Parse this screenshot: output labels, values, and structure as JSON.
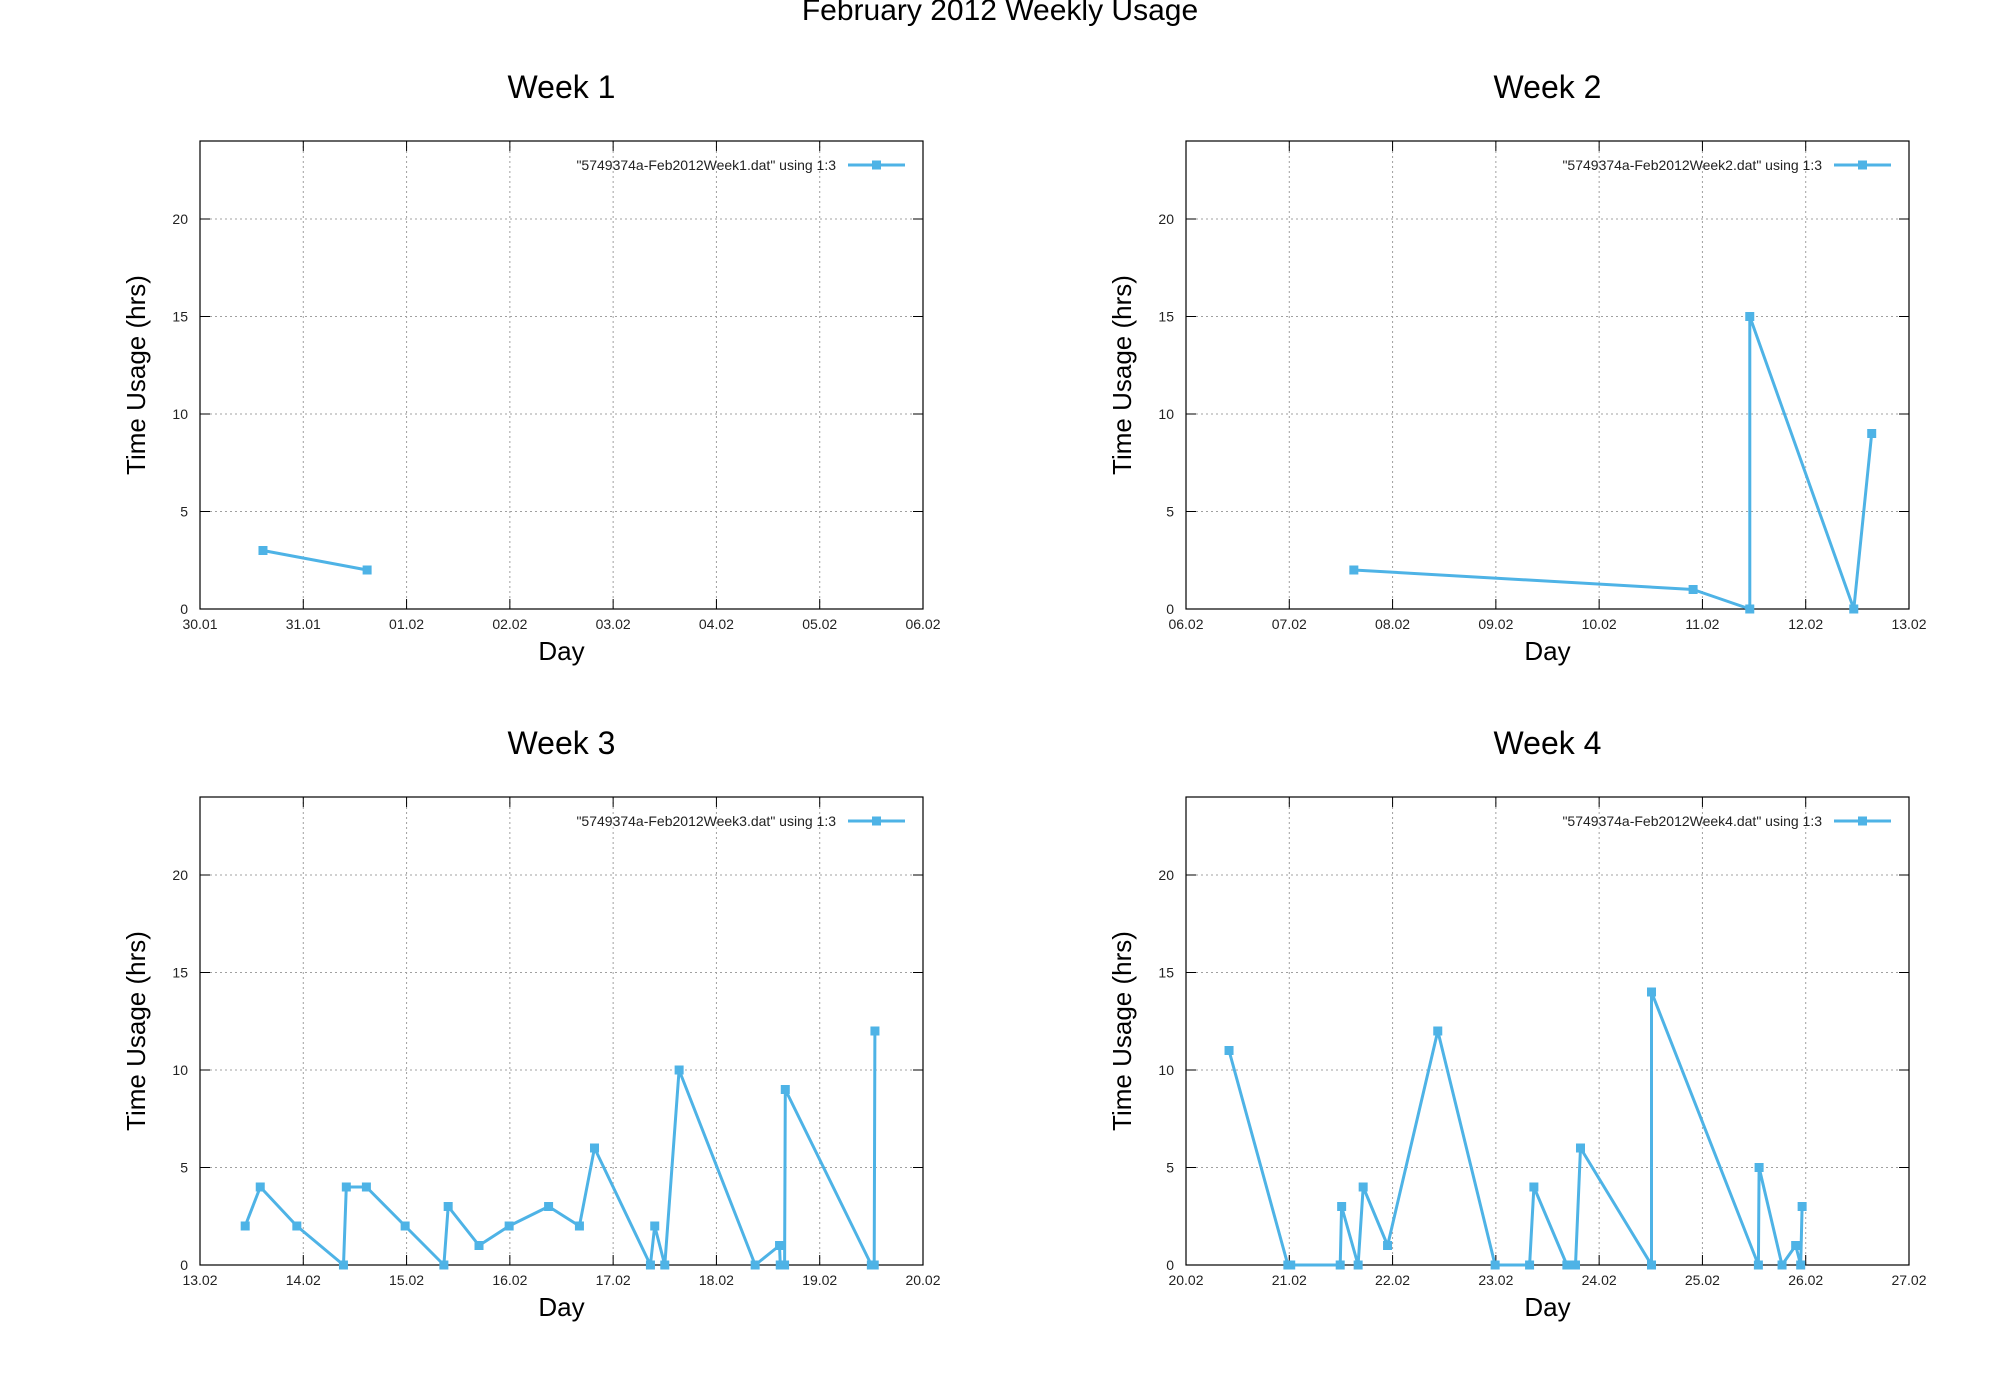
{
  "figure": {
    "title": "February 2012 Weekly Usage"
  },
  "style": {
    "series_color": "#4EB3E6",
    "grid_color": "#a0a0a0"
  },
  "chart_data": [
    {
      "type": "line",
      "title": "Week 1",
      "xlabel": "Day",
      "ylabel": "Time Usage (hrs)",
      "xticks": [
        "30.01",
        "31.01",
        "01.02",
        "02.02",
        "03.02",
        "04.02",
        "05.02",
        "06.02"
      ],
      "xlim": [
        "2012-01-30",
        "2012-02-06"
      ],
      "ylim": [
        0,
        24
      ],
      "yticks": [
        0,
        5,
        10,
        15,
        20
      ],
      "grid": true,
      "legend_position": "top-right",
      "series": [
        {
          "name": "\"5749374a-Feb2012Week1.dat\" using 1:3",
          "x": [
            "2012-01-30 14:38",
            "2012-01-31 14:50"
          ],
          "y": [
            3,
            2
          ]
        }
      ]
    },
    {
      "type": "line",
      "title": "Week 2",
      "xlabel": "Day",
      "ylabel": "Time Usage (hrs)",
      "xticks": [
        "06.02",
        "07.02",
        "08.02",
        "09.02",
        "10.02",
        "11.02",
        "12.02",
        "13.02"
      ],
      "xlim": [
        "2012-02-06",
        "2012-02-13"
      ],
      "ylim": [
        0,
        24
      ],
      "yticks": [
        0,
        5,
        10,
        15,
        20
      ],
      "grid": true,
      "legend_position": "top-right",
      "series": [
        {
          "name": "\"5749374a-Feb2012Week2.dat\" using 1:3",
          "x": [
            "2012-02-07 15:00",
            "2012-02-10 21:50",
            "2012-02-11 11:00",
            "2012-02-11 11:00",
            "2012-02-12 11:10",
            "2012-02-12 15:20"
          ],
          "y": [
            2,
            1,
            0,
            15,
            0,
            9
          ]
        }
      ]
    },
    {
      "type": "line",
      "title": "Week 3",
      "xlabel": "Day",
      "ylabel": "Time Usage (hrs)",
      "xticks": [
        "13.02",
        "14.02",
        "15.02",
        "16.02",
        "17.02",
        "18.02",
        "19.02",
        "20.02"
      ],
      "xlim": [
        "2012-02-13",
        "2012-02-20"
      ],
      "ylim": [
        0,
        24
      ],
      "yticks": [
        0,
        5,
        10,
        15,
        20
      ],
      "grid": true,
      "legend_position": "top-right",
      "series": [
        {
          "name": "\"5749374a-Feb2012Week3.dat\" using 1:3",
          "x": [
            "2012-02-13 10:30",
            "2012-02-13 14:00",
            "2012-02-13 22:30",
            "2012-02-14 09:20",
            "2012-02-14 10:00",
            "2012-02-14 14:40",
            "2012-02-14 23:40",
            "2012-02-15 08:40",
            "2012-02-15 09:40",
            "2012-02-15 16:50",
            "2012-02-15 23:50",
            "2012-02-16 09:00",
            "2012-02-16 16:10",
            "2012-02-16 19:40",
            "2012-02-17 08:40",
            "2012-02-17 09:40",
            "2012-02-17 12:00",
            "2012-02-17 15:20",
            "2012-02-18 09:00",
            "2012-02-18 14:40",
            "2012-02-18 14:50",
            "2012-02-18 15:50",
            "2012-02-18 16:00",
            "2012-02-19 12:00",
            "2012-02-19 12:40",
            "2012-02-19 12:50"
          ],
          "y": [
            2,
            4,
            2,
            0,
            4,
            4,
            2,
            0,
            3,
            1,
            2,
            3,
            2,
            6,
            0,
            2,
            0,
            10,
            0,
            1,
            0,
            0,
            9,
            0,
            0,
            12
          ]
        }
      ]
    },
    {
      "type": "line",
      "title": "Week 4",
      "xlabel": "Day",
      "ylabel": "Time Usage (hrs)",
      "xticks": [
        "20.02",
        "21.02",
        "22.02",
        "23.02",
        "24.02",
        "25.02",
        "26.02",
        "27.02"
      ],
      "xlim": [
        "2012-02-20",
        "2012-02-27"
      ],
      "ylim": [
        0,
        24
      ],
      "yticks": [
        0,
        5,
        10,
        15,
        20
      ],
      "grid": true,
      "legend_position": "top-right",
      "series": [
        {
          "name": "\"5749374a-Feb2012Week4.dat\" using 1:3",
          "x": [
            "2012-02-20 10:00",
            "2012-02-20 23:40",
            "2012-02-21 00:20",
            "2012-02-21 11:50",
            "2012-02-21 12:10",
            "2012-02-21 16:00",
            "2012-02-21 17:10",
            "2012-02-21 22:50",
            "2012-02-22 10:30",
            "2012-02-22 23:50",
            "2012-02-23 07:50",
            "2012-02-23 08:50",
            "2012-02-23 16:30",
            "2012-02-23 18:30",
            "2012-02-23 19:40",
            "2012-02-24 12:10",
            "2012-02-24 12:10",
            "2012-02-25 13:00",
            "2012-02-25 13:10",
            "2012-02-25 18:30",
            "2012-02-25 21:40",
            "2012-02-25 22:50",
            "2012-02-25 23:10"
          ],
          "y": [
            11,
            0,
            0,
            0,
            3,
            0,
            4,
            1,
            12,
            0,
            0,
            4,
            0,
            0,
            6,
            0,
            14,
            0,
            5,
            0,
            1,
            0,
            3
          ]
        }
      ]
    }
  ]
}
